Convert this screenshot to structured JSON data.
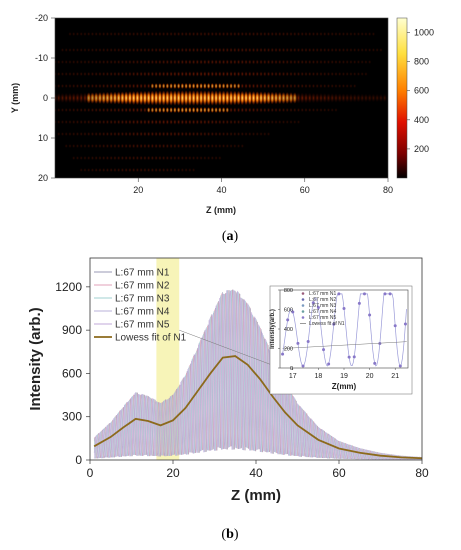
{
  "chart_data": [
    {
      "type": "heatmap",
      "panel_label": "a",
      "xlabel": "Z (mm)",
      "ylabel": "Y (mm)",
      "xlim": [
        0,
        80
      ],
      "ylim": [
        -20,
        20
      ],
      "y_inverted": true,
      "x_ticks": [
        20,
        40,
        60,
        80
      ],
      "y_ticks": [
        -20,
        -10,
        0,
        10,
        20
      ],
      "colorbar": {
        "min": 0,
        "max": 1100,
        "ticks": [
          200,
          400,
          600,
          800,
          1000
        ],
        "colors": [
          "#000000",
          "#7a0000",
          "#e01000",
          "#ff8000",
          "#ffe040",
          "#ffffd0"
        ]
      }
    },
    {
      "type": "line",
      "panel_label": "b",
      "xlabel": "Z (mm)",
      "ylabel": "Intensity (arb.)",
      "xlim": [
        0,
        80
      ],
      "ylim": [
        0,
        1400
      ],
      "x_ticks": [
        0,
        20,
        40,
        60,
        80
      ],
      "y_ticks": [
        0,
        300,
        600,
        900,
        1200
      ],
      "legend_position": "top-left",
      "series": [
        {
          "name": "L:67 mm N1",
          "color": "#9a9ab4"
        },
        {
          "name": "L:67 mm N2",
          "color": "#e0a0b8"
        },
        {
          "name": "L:67 mm N3",
          "color": "#a0d0d0"
        },
        {
          "name": "L:67 mm N4",
          "color": "#b8b0d8"
        },
        {
          "name": "L:67 mm N5",
          "color": "#c0a8d8"
        },
        {
          "name": "Lowess fit of N1",
          "color": "#8c6a1c",
          "x": [
            1,
            5,
            8,
            11,
            14,
            17,
            20,
            23,
            26,
            29,
            32,
            35,
            38,
            41,
            44,
            47,
            50,
            55,
            60,
            65,
            70,
            75,
            80
          ],
          "values": [
            95,
            160,
            225,
            285,
            270,
            240,
            275,
            360,
            480,
            600,
            710,
            720,
            660,
            560,
            440,
            330,
            240,
            140,
            80,
            50,
            30,
            18,
            12
          ]
        }
      ],
      "highlight_range": [
        16,
        21.5
      ],
      "inset": {
        "xlabel": "Z(mm)",
        "ylabel": "Intensity(arb.)",
        "xlim": [
          16.5,
          21.5
        ],
        "ylim": [
          0,
          800
        ],
        "x_ticks": [
          17,
          18,
          19,
          20,
          21
        ],
        "y_ticks": [
          0,
          200,
          400,
          600,
          800
        ],
        "legend": [
          "L:67 mm N1",
          "L:67 mm N2",
          "L:67 mm N3",
          "L:67 mm N4",
          "L:67 mm N5",
          "Lowess fit of N1"
        ]
      }
    }
  ]
}
